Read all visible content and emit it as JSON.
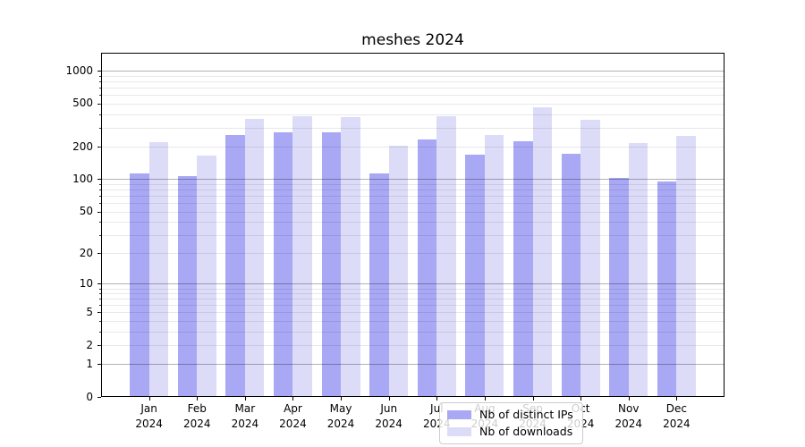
{
  "chart_data": {
    "type": "bar",
    "title": "meshes 2024",
    "categories": [
      "Jan",
      "Feb",
      "Mar",
      "Apr",
      "May",
      "Jun",
      "Jul",
      "Aug",
      "Sep",
      "Oct",
      "Nov",
      "Dec"
    ],
    "x_tick_year": "2024",
    "series": [
      {
        "name": "Nb of distinct IPs",
        "color": "#a8a8f5",
        "values": [
          114,
          107,
          258,
          274,
          270,
          113,
          234,
          168,
          226,
          173,
          103,
          95
        ]
      },
      {
        "name": "Nb of downloads",
        "color": "#dcdcf9",
        "values": [
          222,
          166,
          362,
          385,
          376,
          203,
          382,
          257,
          463,
          357,
          216,
          252
        ]
      }
    ],
    "y_axis": {
      "scale": "log1p",
      "ticks": [
        0,
        1,
        2,
        5,
        10,
        20,
        50,
        100,
        200,
        500,
        1000
      ],
      "major_gridlines": [
        1,
        10,
        100,
        1000
      ],
      "minor_gridline_multipliers": [
        2,
        3,
        4,
        5,
        6,
        7,
        8,
        9
      ],
      "ylim": [
        0,
        1470
      ]
    },
    "legend": {
      "location": "lower center"
    },
    "grid": true,
    "colors": {
      "bar_dark": "#a8a8f5",
      "bar_light": "#dcdcf9",
      "grid_major": "rgba(0,0,0,0.30)",
      "grid_minor": "rgba(0,0,0,0.09)",
      "axis": "#000000",
      "background": "#ffffff",
      "text": "#000000"
    }
  }
}
